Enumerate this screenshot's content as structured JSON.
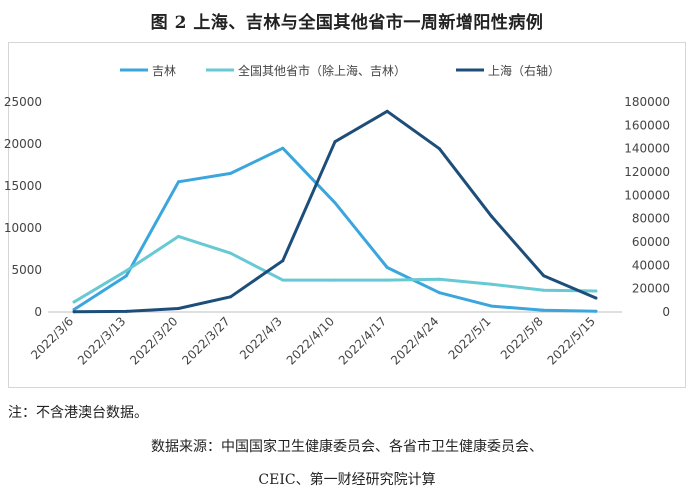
{
  "title": "图 2  上海、吉林与全国其他省市一周新增阳性病例",
  "note": "注：不含港澳台数据。",
  "source_line1": "数据来源：中国国家卫生健康委员会、各省市卫生健康委员会、",
  "source_line2": "CEIC、第一财经研究院计算",
  "chart_data": {
    "type": "line",
    "categories": [
      "2022/3/6",
      "2022/3/13",
      "2022/3/20",
      "2022/3/27",
      "2022/4/3",
      "2022/4/10",
      "2022/4/17",
      "2022/4/24",
      "2022/5/1",
      "2022/5/8",
      "2022/5/15"
    ],
    "left_axis": {
      "ylim": [
        0,
        25000
      ],
      "ticks": [
        "0",
        "5000",
        "10000",
        "15000",
        "20000",
        "25000"
      ]
    },
    "right_axis": {
      "ylim": [
        0,
        180000
      ],
      "ticks": [
        "0",
        "20000",
        "40000",
        "60000",
        "80000",
        "100000",
        "120000",
        "140000",
        "160000",
        "180000"
      ]
    },
    "grid": false,
    "legend_position": "top",
    "series": [
      {
        "name": "吉林",
        "axis": "left",
        "color": "#3aa6dd",
        "values": [
          300,
          4300,
          15500,
          16500,
          19500,
          13000,
          5300,
          2300,
          700,
          200,
          100
        ]
      },
      {
        "name": "全国其他省市（除上海、吉林）",
        "axis": "left",
        "color": "#66c9d4",
        "values": [
          1200,
          4900,
          9000,
          7000,
          3800,
          3800,
          3800,
          3900,
          3300,
          2600,
          2500
        ]
      },
      {
        "name": "上海（右轴）",
        "axis": "right",
        "color": "#1d4e7a",
        "values": [
          200,
          500,
          3000,
          13000,
          44000,
          146000,
          172000,
          140000,
          82000,
          31000,
          12000
        ]
      }
    ]
  }
}
